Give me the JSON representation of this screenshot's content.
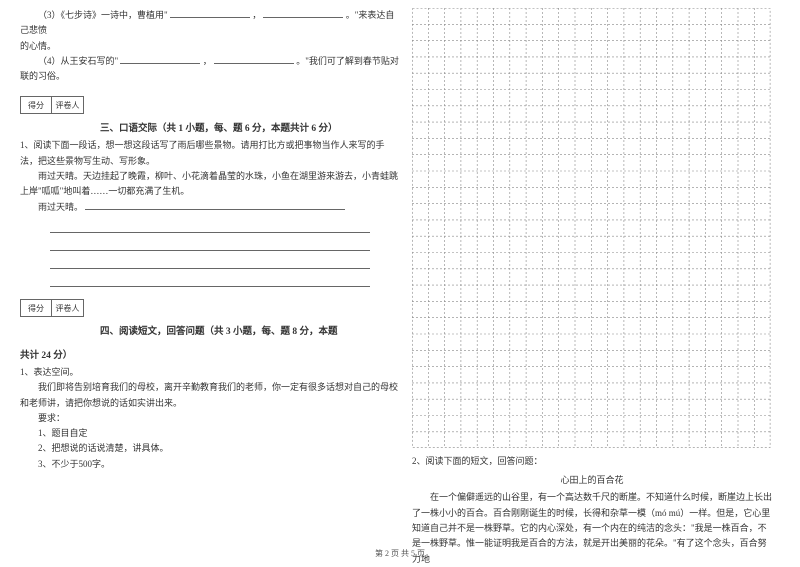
{
  "q3": {
    "prefix": "（3）《七步诗》一诗中，曹植用\"",
    "mid": "，",
    "suffix": "。\"来表达自己悲愤"
  },
  "q3_line2": "的心情。",
  "q4": {
    "prefix": "（4）从王安石写的\"",
    "mid": "，",
    "suffix": "。\"我们可了解到春节贴对联的习俗。"
  },
  "scorebox": {
    "score": "得分",
    "grader": "评卷人"
  },
  "section3": {
    "title": "三、口语交际（共 1 小题，每、题 6 分，本题共计 6 分）",
    "q1_intro": "1、阅读下面一段话，想一想这段话写了雨后哪些景物。请用打比方或把事物当作人来写的手法，把这些景物写生动、写形象。",
    "para1": "雨过天晴。天边挂起了晚霞，柳叶、小花滴着晶莹的水珠，小鱼在湖里游来游去，小青蛙跳上岸\"呱呱\"地叫着……一切都充满了生机。",
    "para2": "雨过天晴。"
  },
  "section4": {
    "title_part1": "四、阅读短文，回答问题（共 3 小题，每、题 8 分，本题",
    "title_part2": "共计 24 分）",
    "q1_title": "1、表达空间。",
    "q1_body": "我们即将告别培育我们的母校，离开辛勤教育我们的老师，你一定有很多话想对自己的母校和老师讲，请把你想说的话如实讲出来。",
    "req_label": "要求：",
    "req1": "1、题目自定",
    "req2": "2、把想说的话说清楚，讲具体。",
    "req3": "3、不少于500字。"
  },
  "section4_right": {
    "q2_intro": "2、阅读下面的短文，回答问题：",
    "story_title": "心田上的百合花",
    "story_body": "在一个偏僻遥远的山谷里，有一个高达数千尺的断崖。不知道什么时候，断崖边上长出了一株小小的百合。百合刚刚诞生的时候，长得和杂草一模（mó  mú）一样。但是，它心里知道自己并不是一株野草。它的内心深处，有一个内在的纯洁的念头：\"我是一株百合，不是一株野草。惟一能证明我是百合的方法，就是开出美丽的花朵。\"有了这个念头，百合努力地"
  },
  "footer": "第 2 页  共 5 页",
  "grid": {
    "cols": 22,
    "rows": 27,
    "cell_size": 16.3,
    "stroke_color": "#888888",
    "dash": "2,2",
    "stroke_width": 0.6
  }
}
